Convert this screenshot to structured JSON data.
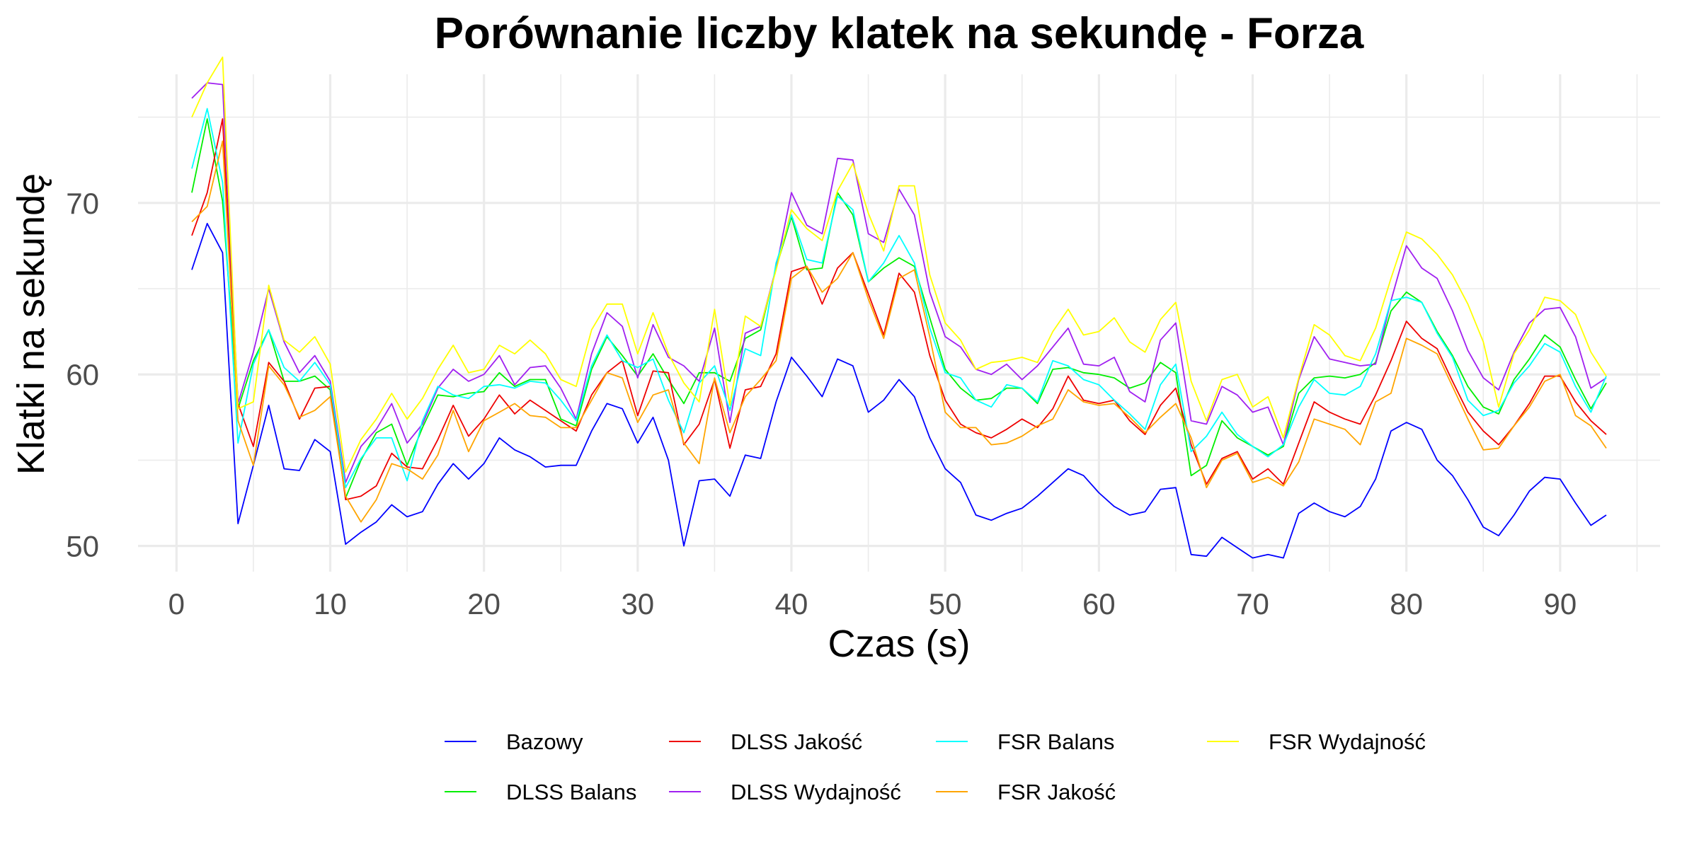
{
  "chart_data": {
    "type": "line",
    "title": "Porównanie liczby klatek na sekundę - Forza",
    "xlabel": "Czas (s)",
    "ylabel": "Klatki na sekundę",
    "xlim": [
      -2.5,
      96.5
    ],
    "ylim": [
      48.5,
      77.5
    ],
    "x_ticks": [
      0,
      10,
      20,
      30,
      40,
      50,
      60,
      70,
      80,
      90
    ],
    "y_ticks": [
      50,
      60,
      70
    ],
    "grid": true,
    "legend_position": "bottom",
    "x": [
      1,
      2,
      3,
      4,
      5,
      6,
      7,
      8,
      9,
      10,
      11,
      12,
      13,
      14,
      15,
      16,
      17,
      18,
      19,
      20,
      21,
      22,
      23,
      24,
      25,
      26,
      27,
      28,
      29,
      30,
      31,
      32,
      33,
      34,
      35,
      36,
      37,
      38,
      39,
      40,
      41,
      42,
      43,
      44,
      45,
      46,
      47,
      48,
      49,
      50,
      51,
      52,
      53,
      54,
      55,
      56,
      57,
      58,
      59,
      60,
      61,
      62,
      63,
      64,
      65,
      66,
      67,
      68,
      69,
      70,
      71,
      72,
      73,
      74,
      75,
      76,
      77,
      78,
      79,
      80,
      81,
      82,
      83,
      84,
      85,
      86,
      87,
      88,
      89,
      90,
      91,
      92,
      93
    ],
    "series": [
      {
        "name": "Bazowy",
        "color": "#0000ff",
        "values": [
          66.1,
          68.8,
          67.1,
          51.3,
          54.7,
          58.2,
          54.5,
          54.4,
          56.2,
          55.5,
          50.1,
          50.8,
          51.4,
          52.4,
          51.7,
          52.0,
          53.6,
          54.8,
          53.9,
          54.8,
          56.3,
          55.6,
          55.2,
          54.6,
          54.7,
          54.7,
          56.7,
          58.3,
          58.0,
          56.0,
          57.5,
          55.0,
          50.0,
          53.8,
          53.9,
          52.9,
          55.3,
          55.1,
          58.4,
          61.0,
          59.9,
          58.7,
          60.9,
          60.5,
          57.8,
          58.5,
          59.7,
          58.7,
          56.3,
          54.5,
          53.7,
          51.8,
          51.5,
          51.9,
          52.2,
          52.9,
          53.7,
          54.5,
          54.1,
          53.1,
          52.3,
          51.8,
          52.0,
          53.3,
          53.4,
          49.5,
          49.4,
          50.5,
          49.9,
          49.3,
          49.5,
          49.3,
          51.9,
          52.5,
          52.0,
          51.7,
          52.3,
          53.9,
          56.7,
          57.2,
          56.8,
          55.0,
          54.1,
          52.7,
          51.1,
          50.6,
          51.8,
          53.2,
          54.0,
          53.9,
          52.5,
          51.2,
          51.8
        ]
      },
      {
        "name": "DLSS Balans",
        "color": "#00ee00",
        "values": [
          70.6,
          74.9,
          70.1,
          58.0,
          60.8,
          62.6,
          59.6,
          59.6,
          59.9,
          59.1,
          52.8,
          55.0,
          56.6,
          57.1,
          54.7,
          56.9,
          58.8,
          58.7,
          58.9,
          59.0,
          60.1,
          59.3,
          59.7,
          59.7,
          57.4,
          57.0,
          60.3,
          62.2,
          61.1,
          59.9,
          61.2,
          59.7,
          58.3,
          60.1,
          60.1,
          59.6,
          62.1,
          62.6,
          66.2,
          69.2,
          66.1,
          66.2,
          70.6,
          69.3,
          65.4,
          66.2,
          66.8,
          66.3,
          63.3,
          60.3,
          59.2,
          58.5,
          58.6,
          59.2,
          59.2,
          58.3,
          60.3,
          60.4,
          60.1,
          60.0,
          59.8,
          59.2,
          59.5,
          60.7,
          60.1,
          54.1,
          54.7,
          57.3,
          56.3,
          55.8,
          55.3,
          55.8,
          58.9,
          59.8,
          59.9,
          59.8,
          60.0,
          60.7,
          63.7,
          64.8,
          64.2,
          62.5,
          61.1,
          59.3,
          58.1,
          57.7,
          59.7,
          60.9,
          62.3,
          61.6,
          59.7,
          58.0,
          59.5
        ]
      },
      {
        "name": "DLSS Jakość",
        "color": "#ee0000",
        "values": [
          68.1,
          70.6,
          74.9,
          58.3,
          55.8,
          60.7,
          59.6,
          57.4,
          59.2,
          59.3,
          52.7,
          52.9,
          53.5,
          55.4,
          54.6,
          54.5,
          56.2,
          58.2,
          56.4,
          57.4,
          58.8,
          57.7,
          58.5,
          57.9,
          57.3,
          56.7,
          58.8,
          60.1,
          60.8,
          57.6,
          60.2,
          60.1,
          55.9,
          57.1,
          59.7,
          55.7,
          59.1,
          59.3,
          61.2,
          66.0,
          66.3,
          64.1,
          66.2,
          67.1,
          64.7,
          62.3,
          65.9,
          64.8,
          61.1,
          58.5,
          57.1,
          56.6,
          56.3,
          56.8,
          57.4,
          56.9,
          58.0,
          59.9,
          58.5,
          58.3,
          58.5,
          57.3,
          56.5,
          58.2,
          59.2,
          55.9,
          53.6,
          55.1,
          55.5,
          53.9,
          54.5,
          53.6,
          56.0,
          58.4,
          57.8,
          57.4,
          57.1,
          58.8,
          60.8,
          63.1,
          62.1,
          61.5,
          59.6,
          57.8,
          56.7,
          55.9,
          57.0,
          58.3,
          59.9,
          59.9,
          58.4,
          57.3,
          56.5
        ]
      },
      {
        "name": "DLSS Wydajność",
        "color": "#a020f0",
        "values": [
          76.1,
          77.0,
          76.9,
          58.3,
          61.3,
          65.0,
          61.9,
          60.1,
          61.1,
          59.6,
          53.7,
          55.8,
          56.8,
          58.3,
          56.0,
          57.1,
          59.2,
          60.3,
          59.6,
          60.0,
          61.1,
          59.4,
          60.4,
          60.5,
          59.2,
          57.4,
          61.2,
          63.6,
          62.8,
          59.8,
          62.9,
          61.0,
          60.5,
          59.6,
          62.7,
          57.2,
          62.4,
          62.8,
          66.2,
          70.6,
          68.7,
          68.2,
          72.6,
          72.5,
          68.2,
          67.7,
          70.8,
          69.3,
          64.8,
          62.2,
          61.6,
          60.3,
          60.0,
          60.6,
          59.7,
          60.5,
          61.6,
          62.7,
          60.6,
          60.5,
          61.0,
          59.0,
          58.4,
          62.0,
          63.0,
          57.3,
          57.1,
          59.3,
          58.8,
          57.8,
          58.1,
          55.9,
          59.7,
          62.2,
          60.9,
          60.7,
          60.5,
          60.6,
          64.3,
          67.5,
          66.2,
          65.6,
          63.7,
          61.4,
          59.8,
          59.1,
          61.3,
          63.0,
          63.8,
          63.9,
          62.2,
          59.2,
          59.8
        ]
      },
      {
        "name": "FSR Balans",
        "color": "#00ffff",
        "values": [
          72.0,
          75.5,
          71.2,
          56.0,
          60.6,
          62.6,
          60.4,
          59.6,
          60.7,
          59.4,
          53.4,
          55.1,
          56.3,
          56.3,
          53.8,
          57.3,
          59.3,
          58.8,
          58.6,
          59.3,
          59.4,
          59.2,
          59.6,
          59.5,
          58.5,
          57.3,
          60.5,
          62.3,
          60.8,
          60.4,
          60.9,
          58.5,
          56.6,
          59.5,
          60.5,
          57.9,
          61.5,
          61.1,
          66.5,
          69.3,
          66.7,
          66.5,
          70.4,
          69.6,
          65.4,
          66.5,
          68.1,
          66.5,
          62.7,
          60.1,
          59.8,
          58.5,
          58.1,
          59.4,
          59.2,
          58.4,
          60.8,
          60.5,
          59.7,
          59.4,
          58.5,
          57.7,
          56.8,
          59.4,
          60.6,
          55.5,
          56.4,
          57.8,
          56.5,
          55.8,
          55.2,
          55.9,
          58.1,
          59.7,
          58.9,
          58.8,
          59.3,
          61.2,
          64.3,
          64.5,
          64.2,
          62.4,
          61.0,
          58.5,
          57.6,
          57.9,
          59.5,
          60.5,
          61.8,
          61.3,
          59.3,
          57.8,
          59.9
        ]
      },
      {
        "name": "FSR Jakość",
        "color": "#ffa500",
        "values": [
          68.9,
          69.8,
          73.6,
          57.3,
          54.7,
          60.5,
          59.4,
          57.5,
          57.9,
          58.7,
          52.9,
          51.4,
          52.7,
          54.8,
          54.5,
          53.9,
          55.3,
          57.9,
          55.5,
          57.3,
          57.8,
          58.3,
          57.6,
          57.5,
          56.9,
          56.9,
          58.5,
          60.1,
          59.8,
          57.2,
          58.8,
          59.1,
          56.0,
          54.8,
          59.8,
          56.6,
          58.7,
          59.7,
          60.8,
          65.6,
          66.3,
          64.8,
          65.6,
          67.1,
          64.4,
          62.1,
          65.6,
          66.1,
          62.2,
          57.8,
          56.9,
          56.9,
          55.9,
          56.0,
          56.4,
          57.0,
          57.4,
          59.1,
          58.4,
          58.2,
          58.3,
          57.5,
          56.6,
          57.5,
          58.3,
          56.3,
          53.4,
          55.0,
          55.4,
          53.7,
          54.0,
          53.5,
          54.9,
          57.4,
          57.1,
          56.8,
          55.9,
          58.4,
          58.9,
          62.1,
          61.7,
          61.2,
          59.3,
          57.4,
          55.6,
          55.7,
          57.0,
          58.1,
          59.6,
          60.0,
          57.6,
          57.0,
          55.7
        ]
      },
      {
        "name": "FSR Wydajność",
        "color": "#ffff00",
        "values": [
          75.0,
          77.0,
          78.5,
          58.0,
          58.4,
          65.2,
          62.0,
          61.3,
          62.2,
          60.6,
          54.3,
          56.2,
          57.4,
          58.9,
          57.4,
          58.6,
          60.3,
          61.7,
          60.1,
          60.3,
          61.7,
          61.2,
          62.0,
          61.2,
          59.7,
          59.3,
          62.6,
          64.1,
          64.1,
          61.2,
          63.6,
          61.2,
          59.5,
          58.4,
          63.8,
          58.2,
          63.4,
          62.8,
          66.1,
          69.6,
          68.5,
          67.8,
          70.7,
          72.3,
          69.4,
          67.2,
          71.0,
          71.0,
          65.8,
          63.0,
          62.0,
          60.3,
          60.7,
          60.8,
          61.0,
          60.7,
          62.5,
          63.8,
          62.3,
          62.5,
          63.3,
          61.9,
          61.3,
          63.2,
          64.2,
          59.6,
          57.3,
          59.7,
          60.0,
          58.1,
          58.7,
          56.3,
          59.8,
          62.9,
          62.3,
          61.1,
          60.8,
          62.7,
          65.6,
          68.3,
          67.9,
          67.0,
          65.8,
          64.1,
          61.9,
          58.1,
          61.2,
          62.6,
          64.5,
          64.3,
          63.5,
          61.3,
          59.9
        ]
      }
    ]
  }
}
